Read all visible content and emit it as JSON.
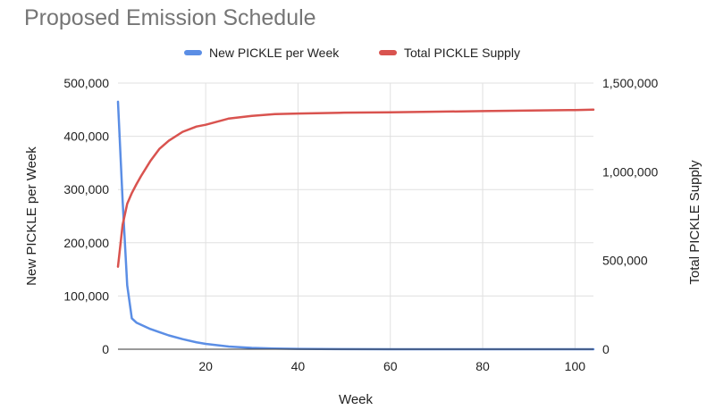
{
  "chart_data": {
    "type": "line",
    "title": "Proposed Emission Schedule",
    "xlabel": "Week",
    "ylabel_left": "New PICKLE per Week",
    "ylabel_right": "Total PICKLE Supply",
    "xlim": [
      1,
      104
    ],
    "ylim_left": [
      0,
      500000
    ],
    "ylim_right": [
      0,
      1500000
    ],
    "x_ticks": [
      20,
      40,
      60,
      80,
      100
    ],
    "x_tick_labels": [
      "20",
      "40",
      "60",
      "80",
      "100"
    ],
    "y_left_ticks": [
      0,
      100000,
      200000,
      300000,
      400000,
      500000
    ],
    "y_left_tick_labels": [
      "0",
      "100,000",
      "200,000",
      "300,000",
      "400,000",
      "500,000"
    ],
    "y_right_ticks": [
      0,
      500000,
      1000000,
      1500000
    ],
    "y_right_tick_labels": [
      "0",
      "500,000",
      "1,000,000",
      "1,500,000"
    ],
    "grid": true,
    "legend_position": "top",
    "series": [
      {
        "name": "New PICKLE per Week",
        "axis": "left",
        "color": "#5b8ee5",
        "x": [
          1,
          2,
          3,
          4,
          5,
          6,
          8,
          10,
          12,
          15,
          18,
          20,
          25,
          30,
          35,
          40,
          50,
          60,
          80,
          100,
          104
        ],
        "values": [
          465000,
          280000,
          120000,
          58000,
          50000,
          46000,
          38000,
          32000,
          26000,
          19000,
          13000,
          10000,
          5000,
          2500,
          1200,
          600,
          200,
          100,
          50,
          20,
          10
        ]
      },
      {
        "name": "Total PICKLE Supply",
        "axis": "right",
        "color": "#d9534f",
        "x": [
          1,
          2,
          3,
          4,
          5,
          6,
          8,
          10,
          12,
          15,
          18,
          20,
          25,
          30,
          35,
          40,
          50,
          60,
          80,
          100,
          104
        ],
        "values": [
          465000,
          700000,
          820000,
          880000,
          930000,
          976000,
          1060000,
          1130000,
          1175000,
          1225000,
          1255000,
          1265000,
          1300000,
          1315000,
          1325000,
          1328000,
          1333000,
          1335000,
          1342000,
          1348000,
          1350000
        ]
      }
    ]
  }
}
